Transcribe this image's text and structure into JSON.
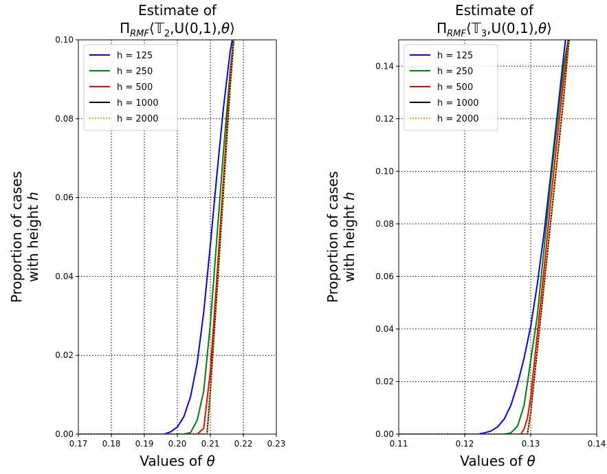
{
  "chart_data": [
    {
      "type": "line",
      "title_line1": "Estimate of",
      "title_line2": "Π",
      "title_sub": "RMF",
      "title_rest_a": "⟨",
      "title_T": "𝕋",
      "title_T_sub": "2",
      "title_rest_b": ",U(0,1),",
      "title_theta": "θ",
      "title_rest_c": "⟩",
      "xlabel_text": "Values of ",
      "xlabel_var": "θ",
      "ylabel_line1": "Proportion of cases",
      "ylabel_line2_text": "with height ",
      "ylabel_line2_var": "h",
      "xlim": [
        0.17,
        0.23
      ],
      "ylim": [
        0.0,
        0.1
      ],
      "xticks": [
        "0.17",
        "0.18",
        "0.19",
        "0.20",
        "0.21",
        "0.22",
        "0.23"
      ],
      "yticks": [
        "0.00",
        "0.02",
        "0.04",
        "0.06",
        "0.08",
        "0.10"
      ],
      "grid": true,
      "legend_position": "top-left",
      "series": [
        {
          "name": "h = 125",
          "color": "#0000ff",
          "style": "solid",
          "x": [
            0.17,
            0.196,
            0.198,
            0.2,
            0.202,
            0.204,
            0.206,
            0.208,
            0.21,
            0.212,
            0.214,
            0.216,
            0.2175
          ],
          "y": [
            0.0,
            0.0,
            0.0006,
            0.0018,
            0.0045,
            0.0095,
            0.018,
            0.031,
            0.048,
            0.066,
            0.083,
            0.097,
            0.104
          ]
        },
        {
          "name": "h = 250",
          "color": "#008000",
          "style": "solid",
          "x": [
            0.17,
            0.202,
            0.204,
            0.206,
            0.208,
            0.21,
            0.212,
            0.214,
            0.216,
            0.2175
          ],
          "y": [
            0.0,
            0.0,
            0.0004,
            0.0035,
            0.011,
            0.028,
            0.05,
            0.072,
            0.092,
            0.104
          ]
        },
        {
          "name": "h = 500",
          "color": "#ff0000",
          "style": "solid",
          "x": [
            0.17,
            0.206,
            0.208,
            0.21,
            0.212,
            0.214,
            0.216,
            0.2175
          ],
          "y": [
            0.0,
            0.0,
            0.0015,
            0.016,
            0.04,
            0.065,
            0.09,
            0.104
          ]
        },
        {
          "name": "h = 1000",
          "color": "#000000",
          "style": "solid",
          "x": [
            0.17,
            0.209,
            0.21,
            0.212,
            0.214,
            0.216,
            0.2175
          ],
          "y": [
            0.0,
            0.0,
            0.011,
            0.036,
            0.062,
            0.088,
            0.104
          ]
        },
        {
          "name": "h = 2000",
          "color": "#ffa500",
          "style": "dotted",
          "x": [
            0.17,
            0.209,
            0.21,
            0.212,
            0.214,
            0.216,
            0.2175
          ],
          "y": [
            0.0,
            0.0,
            0.011,
            0.036,
            0.062,
            0.088,
            0.104
          ]
        }
      ]
    },
    {
      "type": "line",
      "title_line1": "Estimate of",
      "title_line2": "Π",
      "title_sub": "RMF",
      "title_rest_a": "⟨",
      "title_T": "𝕋",
      "title_T_sub": "3",
      "title_rest_b": ",U(0,1),",
      "title_theta": "θ",
      "title_rest_c": "⟩",
      "xlabel_text": "Values of ",
      "xlabel_var": "θ",
      "ylabel_line1": "Proportion of cases",
      "ylabel_line2_text": "with height ",
      "ylabel_line2_var": "h",
      "xlim": [
        0.11,
        0.14
      ],
      "ylim": [
        0.0,
        0.15
      ],
      "xticks": [
        "0.11",
        "0.12",
        "0.13",
        "0.14"
      ],
      "yticks": [
        "0.00",
        "0.02",
        "0.04",
        "0.06",
        "0.08",
        "0.10",
        "0.12",
        "0.14"
      ],
      "grid": true,
      "legend_position": "top-left",
      "series": [
        {
          "name": "h = 125",
          "color": "#0000ff",
          "style": "solid",
          "x": [
            0.11,
            0.122,
            0.123,
            0.124,
            0.125,
            0.126,
            0.127,
            0.128,
            0.129,
            0.13,
            0.131,
            0.132,
            0.133,
            0.134,
            0.135,
            0.1355
          ],
          "y": [
            0.0,
            0.0,
            0.0005,
            0.0012,
            0.0028,
            0.0058,
            0.011,
            0.019,
            0.029,
            0.041,
            0.057,
            0.076,
            0.098,
            0.121,
            0.144,
            0.155
          ]
        },
        {
          "name": "h = 250",
          "color": "#008000",
          "style": "solid",
          "x": [
            0.11,
            0.126,
            0.127,
            0.128,
            0.129,
            0.13,
            0.131,
            0.132,
            0.133,
            0.134,
            0.135,
            0.136
          ],
          "y": [
            0.0,
            0.0,
            0.0005,
            0.003,
            0.011,
            0.028,
            0.045,
            0.07,
            0.095,
            0.118,
            0.14,
            0.155
          ]
        },
        {
          "name": "h = 500",
          "color": "#ff0000",
          "style": "solid",
          "x": [
            0.11,
            0.1285,
            0.129,
            0.1295,
            0.13,
            0.131,
            0.132,
            0.133,
            0.134,
            0.135,
            0.136
          ],
          "y": [
            0.0,
            0.0,
            0.002,
            0.006,
            0.014,
            0.038,
            0.062,
            0.088,
            0.112,
            0.135,
            0.155
          ]
        },
        {
          "name": "h = 1000",
          "color": "#000000",
          "style": "solid",
          "x": [
            0.11,
            0.1295,
            0.13,
            0.131,
            0.132,
            0.133,
            0.134,
            0.135,
            0.136
          ],
          "y": [
            0.0,
            0.0,
            0.008,
            0.032,
            0.056,
            0.08,
            0.104,
            0.128,
            0.155
          ]
        },
        {
          "name": "h = 2000",
          "color": "#ffa500",
          "style": "dotted",
          "x": [
            0.11,
            0.1295,
            0.13,
            0.131,
            0.132,
            0.133,
            0.134,
            0.135,
            0.136
          ],
          "y": [
            0.0,
            0.0,
            0.008,
            0.032,
            0.056,
            0.08,
            0.104,
            0.128,
            0.155
          ]
        }
      ]
    }
  ]
}
